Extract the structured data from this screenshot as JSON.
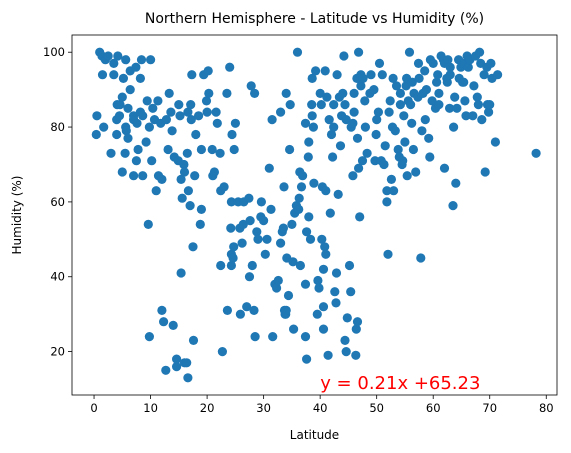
{
  "chart_data": {
    "type": "scatter",
    "title": "Northern Hemisphere - Latitude vs Humidity (%)",
    "xlabel": "Latitude",
    "ylabel": "Humidity (%)",
    "xlim": [
      -3.9,
      81.9
    ],
    "ylim": [
      8.4,
      104.6
    ],
    "xticks": [
      0,
      10,
      20,
      30,
      40,
      50,
      60,
      70,
      80
    ],
    "yticks": [
      20,
      40,
      60,
      80,
      100
    ],
    "grid": false,
    "legend": false,
    "point_color": "#1f77b4",
    "annotation": {
      "text": "y = 0.21x +65.23",
      "x": 40,
      "y": 10,
      "color": "#ff0000"
    },
    "points": [
      [
        0.4,
        78
      ],
      [
        0.5,
        83
      ],
      [
        1,
        100
      ],
      [
        1.4,
        99
      ],
      [
        1.7,
        80
      ],
      [
        1.5,
        94
      ],
      [
        2,
        98
      ],
      [
        3,
        73
      ],
      [
        2.5,
        99
      ],
      [
        3.5,
        94
      ],
      [
        3.5,
        97
      ],
      [
        4,
        78
      ],
      [
        4,
        82
      ],
      [
        4.1,
        86
      ],
      [
        4.2,
        99
      ],
      [
        4.5,
        83
      ],
      [
        5,
        68
      ],
      [
        4.6,
        86
      ],
      [
        5,
        88
      ],
      [
        5.2,
        93
      ],
      [
        5.5,
        73
      ],
      [
        5.6,
        80
      ],
      [
        5.7,
        79
      ],
      [
        5.6,
        98
      ],
      [
        6,
        77
      ],
      [
        6,
        85
      ],
      [
        6.4,
        90
      ],
      [
        6.4,
        95
      ],
      [
        7,
        82
      ],
      [
        7,
        67
      ],
      [
        7,
        83
      ],
      [
        7.4,
        96
      ],
      [
        7.5,
        71
      ],
      [
        7.6,
        81
      ],
      [
        7.8,
        74
      ],
      [
        8.2,
        84
      ],
      [
        8.2,
        93
      ],
      [
        8.4,
        98
      ],
      [
        8.6,
        83
      ],
      [
        8.6,
        67
      ],
      [
        9.2,
        76
      ],
      [
        9.4,
        87
      ],
      [
        9.6,
        54
      ],
      [
        9.8,
        80
      ],
      [
        9.8,
        24
      ],
      [
        10,
        98
      ],
      [
        10.2,
        71
      ],
      [
        10.4,
        85
      ],
      [
        10.7,
        82
      ],
      [
        11,
        63
      ],
      [
        11.3,
        87
      ],
      [
        11.4,
        67
      ],
      [
        11.8,
        81
      ],
      [
        12,
        66
      ],
      [
        12,
        31
      ],
      [
        12.3,
        28
      ],
      [
        12.7,
        15
      ],
      [
        12.8,
        82
      ],
      [
        13.1,
        74
      ],
      [
        13.3,
        89
      ],
      [
        13.6,
        84
      ],
      [
        13.8,
        79
      ],
      [
        14,
        27
      ],
      [
        14.2,
        72
      ],
      [
        14.6,
        16
      ],
      [
        14.6,
        18
      ],
      [
        14.9,
        71
      ],
      [
        15,
        86
      ],
      [
        15.2,
        83
      ],
      [
        15.4,
        66
      ],
      [
        15.4,
        41
      ],
      [
        15.6,
        61
      ],
      [
        15.9,
        70
      ],
      [
        16,
        17
      ],
      [
        16,
        68
      ],
      [
        16.4,
        17
      ],
      [
        16.6,
        13
      ],
      [
        16.5,
        73
      ],
      [
        16.6,
        84
      ],
      [
        16.7,
        63
      ],
      [
        17,
        59
      ],
      [
        17.1,
        86
      ],
      [
        17.2,
        82
      ],
      [
        17.3,
        94
      ],
      [
        17.5,
        48
      ],
      [
        17.6,
        23
      ],
      [
        17.8,
        67
      ],
      [
        18,
        78
      ],
      [
        18.5,
        83
      ],
      [
        18.8,
        54
      ],
      [
        19,
        74
      ],
      [
        19,
        58
      ],
      [
        19.4,
        94
      ],
      [
        19.9,
        87
      ],
      [
        20,
        84
      ],
      [
        20.2,
        95
      ],
      [
        20.3,
        89
      ],
      [
        20.9,
        74
      ],
      [
        21,
        67
      ],
      [
        21.3,
        68
      ],
      [
        21.6,
        84
      ],
      [
        21.8,
        81
      ],
      [
        22.3,
        73
      ],
      [
        22.4,
        63
      ],
      [
        22.4,
        43
      ],
      [
        22.7,
        20
      ],
      [
        23,
        64
      ],
      [
        23.5,
        89
      ],
      [
        23.6,
        31
      ],
      [
        24,
        96
      ],
      [
        24.2,
        53
      ],
      [
        24.3,
        43
      ],
      [
        24.3,
        46
      ],
      [
        24.3,
        60
      ],
      [
        24.4,
        78
      ],
      [
        24.6,
        45
      ],
      [
        24.7,
        48
      ],
      [
        24.8,
        74
      ],
      [
        25,
        81
      ],
      [
        25.5,
        60
      ],
      [
        25.8,
        53
      ],
      [
        25.9,
        30
      ],
      [
        26.2,
        49
      ],
      [
        26.4,
        54
      ],
      [
        26.5,
        60
      ],
      [
        27,
        32
      ],
      [
        27.4,
        61
      ],
      [
        27.5,
        40
      ],
      [
        27.6,
        55
      ],
      [
        27.8,
        91
      ],
      [
        28,
        43
      ],
      [
        28.3,
        31
      ],
      [
        28.4,
        89
      ],
      [
        28.5,
        24
      ],
      [
        28.8,
        52
      ],
      [
        29,
        50
      ],
      [
        29.5,
        56
      ],
      [
        29.6,
        60
      ],
      [
        30,
        55
      ],
      [
        30.3,
        46
      ],
      [
        30.6,
        50
      ],
      [
        31,
        69
      ],
      [
        31.3,
        58
      ],
      [
        31.5,
        82
      ],
      [
        31.6,
        24
      ],
      [
        32,
        38
      ],
      [
        32.3,
        37
      ],
      [
        32.6,
        39
      ],
      [
        33,
        49
      ],
      [
        33,
        84
      ],
      [
        33.3,
        52
      ],
      [
        33.5,
        53
      ],
      [
        33.6,
        64
      ],
      [
        33.7,
        31
      ],
      [
        33.8,
        30
      ],
      [
        33.9,
        30
      ],
      [
        34,
        31
      ],
      [
        34,
        89
      ],
      [
        34.1,
        45
      ],
      [
        34.4,
        35
      ],
      [
        34.6,
        74
      ],
      [
        34.7,
        86
      ],
      [
        35,
        54
      ],
      [
        35.2,
        44
      ],
      [
        35.3,
        26
      ],
      [
        35.5,
        57
      ],
      [
        35.8,
        59
      ],
      [
        36,
        100
      ],
      [
        36.2,
        58
      ],
      [
        36.3,
        61
      ],
      [
        36.4,
        68
      ],
      [
        36.5,
        43
      ],
      [
        36.7,
        64
      ],
      [
        36.9,
        67
      ],
      [
        37.4,
        38
      ],
      [
        37.4,
        81
      ],
      [
        37.4,
        24
      ],
      [
        37.6,
        18
      ],
      [
        37.6,
        52
      ],
      [
        37.9,
        72
      ],
      [
        38,
        56
      ],
      [
        38,
        76
      ],
      [
        38.3,
        50
      ],
      [
        38.5,
        86
      ],
      [
        38.6,
        93
      ],
      [
        38.6,
        83
      ],
      [
        38.8,
        80
      ],
      [
        38.9,
        65
      ],
      [
        39.2,
        95
      ],
      [
        39.5,
        30
      ],
      [
        39.6,
        39
      ],
      [
        39.8,
        37
      ],
      [
        40,
        89
      ],
      [
        40.2,
        86
      ],
      [
        40.3,
        50
      ],
      [
        40.4,
        64
      ],
      [
        40.6,
        26
      ],
      [
        40.6,
        32
      ],
      [
        40.6,
        42
      ],
      [
        40.8,
        48
      ],
      [
        40.9,
        95
      ],
      [
        41,
        63
      ],
      [
        41,
        46
      ],
      [
        41.2,
        88
      ],
      [
        41.4,
        19
      ],
      [
        41.6,
        82
      ],
      [
        41.8,
        57
      ],
      [
        42,
        78
      ],
      [
        42.2,
        72
      ],
      [
        42.4,
        86
      ],
      [
        42.4,
        80
      ],
      [
        42.6,
        36
      ],
      [
        42.8,
        33
      ],
      [
        42.9,
        41
      ],
      [
        43,
        94
      ],
      [
        43.2,
        62
      ],
      [
        43.4,
        88
      ],
      [
        43.6,
        75
      ],
      [
        43.8,
        83
      ],
      [
        44,
        89
      ],
      [
        44.2,
        99
      ],
      [
        44.4,
        23
      ],
      [
        44.4,
        86
      ],
      [
        44.6,
        20
      ],
      [
        44.6,
        82
      ],
      [
        44.8,
        29
      ],
      [
        45.2,
        43
      ],
      [
        45.4,
        36
      ],
      [
        45.5,
        80
      ],
      [
        45.8,
        67
      ],
      [
        45.8,
        81
      ],
      [
        46,
        89
      ],
      [
        46,
        84
      ],
      [
        46.3,
        19
      ],
      [
        46.4,
        26
      ],
      [
        46.5,
        93
      ],
      [
        46.6,
        77
      ],
      [
        46.6,
        28
      ],
      [
        46.8,
        100
      ],
      [
        46.8,
        69
      ],
      [
        47,
        56
      ],
      [
        47.2,
        91
      ],
      [
        47.2,
        94
      ],
      [
        47.5,
        71
      ],
      [
        47.6,
        93
      ],
      [
        47.9,
        87
      ],
      [
        48,
        80
      ],
      [
        48.3,
        73
      ],
      [
        48.8,
        89
      ],
      [
        49,
        94
      ],
      [
        49.5,
        90
      ],
      [
        49.7,
        71
      ],
      [
        49.9,
        78
      ],
      [
        50,
        82
      ],
      [
        50.3,
        84
      ],
      [
        50.5,
        97
      ],
      [
        50.8,
        71
      ],
      [
        51,
        94
      ],
      [
        51.3,
        70
      ],
      [
        51.5,
        75
      ],
      [
        51.8,
        63
      ],
      [
        51.8,
        60
      ],
      [
        52,
        46
      ],
      [
        52.2,
        84
      ],
      [
        52.4,
        87
      ],
      [
        52.6,
        66
      ],
      [
        52.8,
        80
      ],
      [
        52.9,
        93
      ],
      [
        53,
        63
      ],
      [
        53.3,
        79
      ],
      [
        53.5,
        91
      ],
      [
        53.8,
        74
      ],
      [
        54,
        72
      ],
      [
        54.2,
        89
      ],
      [
        54.2,
        86
      ],
      [
        54.5,
        70
      ],
      [
        54.6,
        71
      ],
      [
        54.8,
        83
      ],
      [
        55,
        76
      ],
      [
        55.2,
        91
      ],
      [
        55.3,
        93
      ],
      [
        55.4,
        67
      ],
      [
        55.6,
        87
      ],
      [
        55.8,
        100
      ],
      [
        56,
        86
      ],
      [
        56.2,
        81
      ],
      [
        56.3,
        92
      ],
      [
        56.5,
        74
      ],
      [
        56.6,
        89
      ],
      [
        56.9,
        68
      ],
      [
        57.3,
        88
      ],
      [
        57.4,
        97
      ],
      [
        57.5,
        93
      ],
      [
        57.8,
        45
      ],
      [
        58,
        79
      ],
      [
        58.2,
        89
      ],
      [
        58.5,
        95
      ],
      [
        58.6,
        82
      ],
      [
        58.8,
        90
      ],
      [
        59.2,
        77
      ],
      [
        59.4,
        72
      ],
      [
        59.5,
        98
      ],
      [
        59.8,
        87
      ],
      [
        60,
        97
      ],
      [
        60.4,
        85
      ],
      [
        60.6,
        92
      ],
      [
        60.8,
        94
      ],
      [
        61,
        89
      ],
      [
        61,
        86
      ],
      [
        61.4,
        99
      ],
      [
        61.8,
        98
      ],
      [
        62,
        69
      ],
      [
        62,
        97
      ],
      [
        62.4,
        93
      ],
      [
        62.5,
        92
      ],
      [
        62.6,
        98
      ],
      [
        62.9,
        85
      ],
      [
        63,
        96
      ],
      [
        63,
        94
      ],
      [
        63.5,
        59
      ],
      [
        63.6,
        80
      ],
      [
        63.8,
        88
      ],
      [
        64,
        65
      ],
      [
        64.2,
        85
      ],
      [
        64.5,
        98
      ],
      [
        64.6,
        93
      ],
      [
        64.9,
        96
      ],
      [
        65.2,
        92
      ],
      [
        65.4,
        92
      ],
      [
        65.5,
        97
      ],
      [
        65.6,
        87
      ],
      [
        65.8,
        83
      ],
      [
        66,
        99
      ],
      [
        66.2,
        96
      ],
      [
        66.5,
        98
      ],
      [
        67,
        83
      ],
      [
        67.2,
        91
      ],
      [
        67.5,
        99
      ],
      [
        67.8,
        88
      ],
      [
        68,
        86
      ],
      [
        68.2,
        100
      ],
      [
        68.4,
        97
      ],
      [
        68.6,
        82
      ],
      [
        69,
        94
      ],
      [
        69.2,
        68
      ],
      [
        69.5,
        96
      ],
      [
        69.6,
        86
      ],
      [
        69.8,
        84
      ],
      [
        70,
        86
      ],
      [
        70.2,
        97
      ],
      [
        70.4,
        93
      ],
      [
        71,
        76
      ],
      [
        71.4,
        94
      ],
      [
        78.2,
        73
      ]
    ]
  }
}
